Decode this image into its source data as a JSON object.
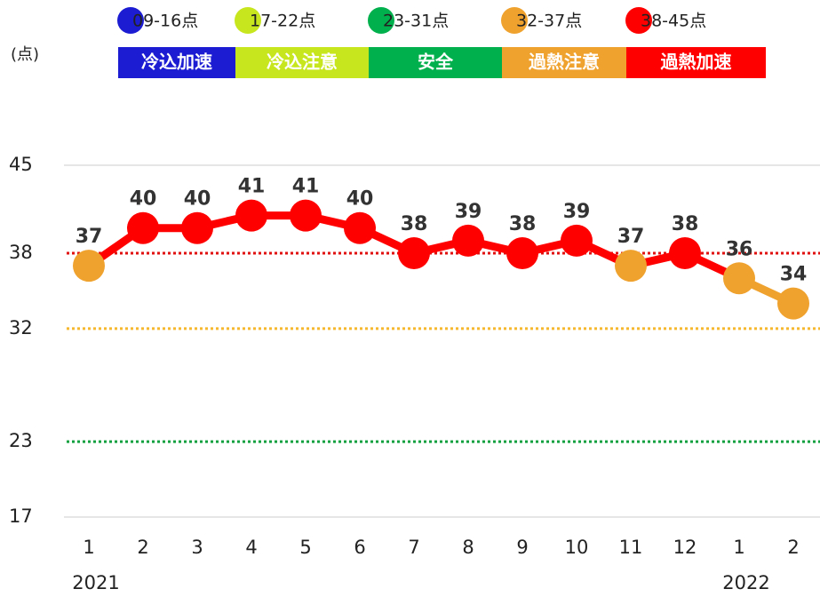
{
  "chart_data": {
    "type": "line",
    "y_axis_label": "(点)",
    "legend": [
      {
        "name": "09-16点",
        "label": "冷込加速",
        "color": "#1c1cd2"
      },
      {
        "name": "17-22点",
        "label": "冷込注意",
        "color": "#c8e61e"
      },
      {
        "name": "23-31点",
        "label": "安全",
        "color": "#00b04c"
      },
      {
        "name": "32-37点",
        "label": "過熱注意",
        "color": "#f0a22e"
      },
      {
        "name": "38-45点",
        "label": "過熱加速",
        "color": "#ff0000"
      }
    ],
    "categories": [
      "1",
      "2",
      "3",
      "4",
      "5",
      "6",
      "7",
      "8",
      "9",
      "10",
      "11",
      "12",
      "1",
      "2"
    ],
    "year_labels": [
      "2021",
      null,
      null,
      null,
      null,
      null,
      null,
      null,
      null,
      null,
      null,
      null,
      "2022",
      null
    ],
    "values": [
      37,
      40,
      40,
      41,
      41,
      40,
      38,
      39,
      38,
      39,
      37,
      38,
      36,
      34
    ],
    "point_colors": [
      "#f0a22e",
      "#ff0000",
      "#ff0000",
      "#ff0000",
      "#ff0000",
      "#ff0000",
      "#ff0000",
      "#ff0000",
      "#ff0000",
      "#ff0000",
      "#f0a22e",
      "#ff0000",
      "#f0a22e",
      "#f0a22e"
    ],
    "ylim": [
      17,
      45
    ],
    "yticks": [
      45,
      38,
      32,
      23,
      17
    ],
    "thresholds": [
      {
        "value": 38,
        "color": "#e01010"
      },
      {
        "value": 32,
        "color": "#f5b82e"
      },
      {
        "value": 23,
        "color": "#10a040"
      }
    ],
    "grid_ticks": [
      45,
      17
    ]
  }
}
